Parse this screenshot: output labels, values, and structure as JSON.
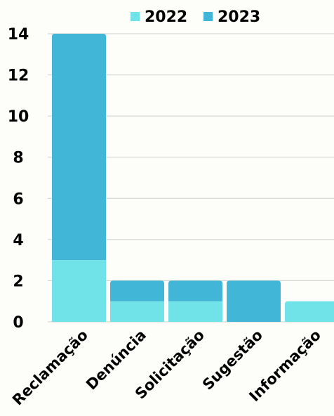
{
  "chart_data": {
    "type": "bar",
    "stacked": true,
    "categories": [
      "Reclamação",
      "Denúncia",
      "Solicitação",
      "Sugestão",
      "Informação"
    ],
    "series": [
      {
        "name": "2022",
        "values": [
          3,
          1,
          1,
          0,
          1
        ],
        "color": "#6fe3e8"
      },
      {
        "name": "2023",
        "values": [
          11,
          1,
          1,
          2,
          0
        ],
        "color": "#41b6d6"
      }
    ],
    "ylim": [
      0,
      14
    ],
    "yticks": [
      "0",
      "2",
      "4",
      "6",
      "8",
      "10",
      "12",
      "14"
    ],
    "grid": true,
    "legend": "top"
  }
}
